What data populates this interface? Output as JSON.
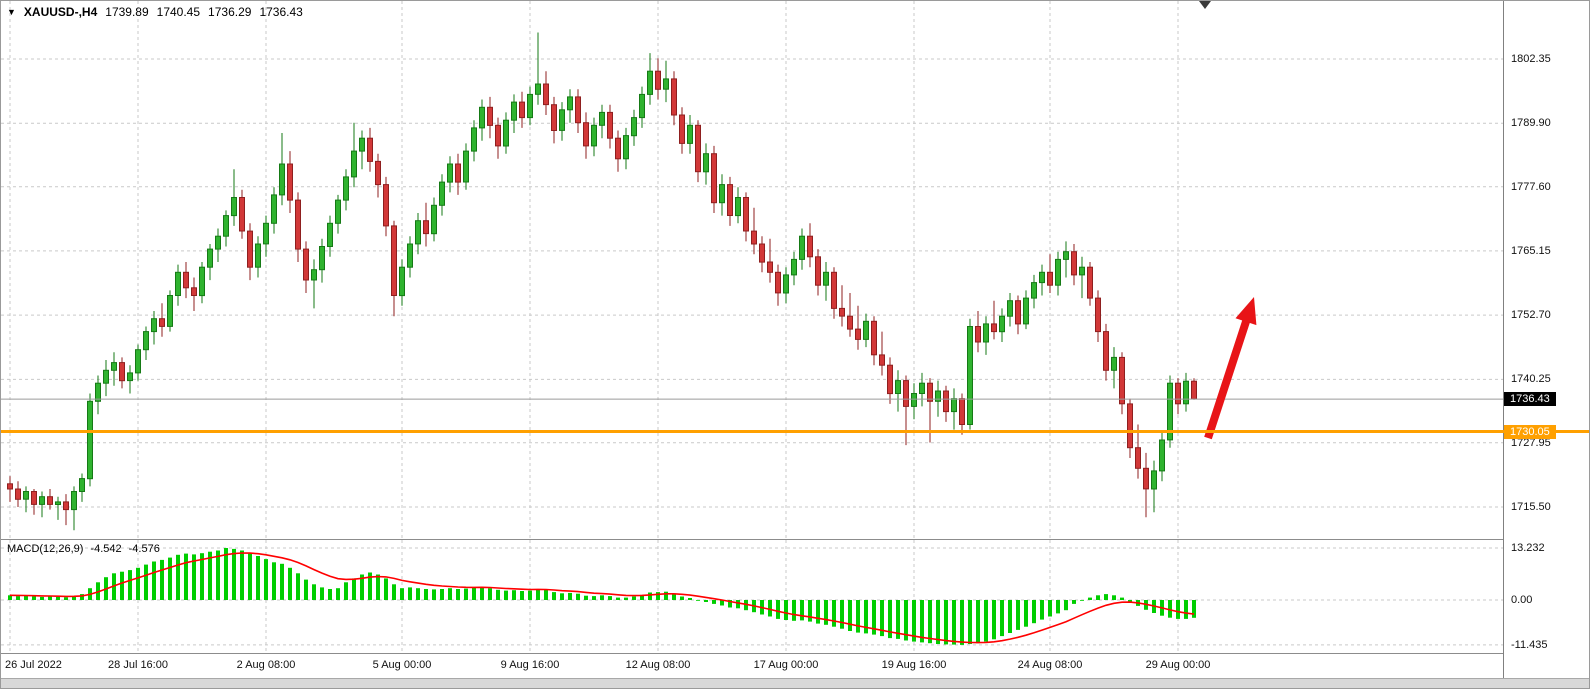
{
  "window": {
    "symbol": "XAUUSD-,H4",
    "ohlc": {
      "open": "1739.89",
      "high": "1740.45",
      "low": "1736.29",
      "close": "1736.43"
    }
  },
  "price_scale": {
    "labels": [
      "1802.35",
      "1789.90",
      "1777.60",
      "1765.15",
      "1752.70",
      "1740.25",
      "1727.95",
      "1715.50"
    ],
    "current_badge": "1736.43",
    "hline_badge": "1730.05"
  },
  "macd_scale": {
    "labels": [
      "13.232",
      "0.00",
      "-11.435"
    ]
  },
  "time_axis": {
    "labels": [
      {
        "text": "26 Jul 2022",
        "index": 0
      },
      {
        "text": "28 Jul 16:00",
        "index": 16
      },
      {
        "text": "2 Aug 08:00",
        "index": 32
      },
      {
        "text": "5 Aug 00:00",
        "index": 49
      },
      {
        "text": "9 Aug 16:00",
        "index": 65
      },
      {
        "text": "12 Aug 08:00",
        "index": 81
      },
      {
        "text": "17 Aug 00:00",
        "index": 97
      },
      {
        "text": "19 Aug 16:00",
        "index": 113
      },
      {
        "text": "24 Aug 08:00",
        "index": 130
      },
      {
        "text": "29 Aug 00:00",
        "index": 146
      }
    ]
  },
  "indicator": {
    "name": "MACD(12,26,9)",
    "value_main": "-4.542",
    "value_signal": "-4.576"
  },
  "colors": {
    "up": "#2fb32f",
    "up_border": "#157a15",
    "down": "#d23838",
    "down_border": "#8f1f1f",
    "grid": "#c9c9c9",
    "macd_bar": "#00ce00",
    "signal": "#ff0000",
    "hline": "#ffa000",
    "arrow": "#e81417",
    "current_line": "#9a9a9a",
    "badge_current_bg": "#000000"
  },
  "chart_data": {
    "type": "candlestick+macd",
    "symbol": "XAUUSD",
    "timeframe": "H4",
    "price_range": {
      "top": 1813.6,
      "bottom": 1709.3
    },
    "grid_prices": [
      1802.35,
      1789.9,
      1777.6,
      1765.15,
      1752.7,
      1740.25,
      1727.95,
      1715.5
    ],
    "current_price": 1736.43,
    "hline_price": 1730.05,
    "candles": [
      [
        1720,
        1721.5,
        1716.5,
        1719
      ],
      [
        1719,
        1720.5,
        1715.5,
        1717
      ],
      [
        1717,
        1719.5,
        1714.5,
        1718.5
      ],
      [
        1718.5,
        1719,
        1714,
        1716
      ],
      [
        1716,
        1718.5,
        1713.5,
        1717.5
      ],
      [
        1717.5,
        1719,
        1715,
        1716
      ],
      [
        1716,
        1717.5,
        1713,
        1716.5
      ],
      [
        1716.5,
        1718,
        1712,
        1715
      ],
      [
        1715,
        1719.5,
        1711,
        1718.5
      ],
      [
        1718.5,
        1722,
        1716.5,
        1721
      ],
      [
        1721,
        1737.5,
        1719.5,
        1736
      ],
      [
        1736,
        1741,
        1733.5,
        1739.5
      ],
      [
        1739.5,
        1744,
        1737,
        1742
      ],
      [
        1742,
        1745.5,
        1739,
        1743.5
      ],
      [
        1743.5,
        1744.5,
        1738.5,
        1740
      ],
      [
        1740,
        1743,
        1737.5,
        1741.5
      ],
      [
        1741.5,
        1747,
        1740,
        1746
      ],
      [
        1746,
        1750.5,
        1744,
        1749.5
      ],
      [
        1749.5,
        1753.5,
        1747,
        1752
      ],
      [
        1752,
        1755,
        1748.5,
        1750.5
      ],
      [
        1750.5,
        1757.5,
        1749.5,
        1756.5
      ],
      [
        1756.5,
        1762.5,
        1754.5,
        1761
      ],
      [
        1761,
        1763,
        1756,
        1758
      ],
      [
        1758,
        1760,
        1753.5,
        1756.5
      ],
      [
        1756.5,
        1763,
        1755,
        1762
      ],
      [
        1762,
        1766.5,
        1759.5,
        1765.5
      ],
      [
        1765.5,
        1769.5,
        1763,
        1768
      ],
      [
        1768,
        1773,
        1766,
        1772
      ],
      [
        1772,
        1781,
        1770,
        1775.5
      ],
      [
        1775.5,
        1777,
        1767.5,
        1769
      ],
      [
        1769,
        1770.5,
        1759.5,
        1762
      ],
      [
        1762,
        1768,
        1760,
        1766.5
      ],
      [
        1766.5,
        1772,
        1764,
        1770.5
      ],
      [
        1770.5,
        1777.5,
        1768.5,
        1776
      ],
      [
        1776,
        1788,
        1774,
        1782
      ],
      [
        1782,
        1784.5,
        1772.5,
        1775
      ],
      [
        1775,
        1776.5,
        1763,
        1765.5
      ],
      [
        1765.5,
        1767,
        1757,
        1759.5
      ],
      [
        1759.5,
        1763.5,
        1754,
        1761.5
      ],
      [
        1761.5,
        1767.5,
        1759,
        1766
      ],
      [
        1766,
        1772,
        1764,
        1770.5
      ],
      [
        1770.5,
        1776,
        1768.5,
        1775
      ],
      [
        1775,
        1781,
        1773,
        1779.5
      ],
      [
        1779.5,
        1790,
        1777.5,
        1784.5
      ],
      [
        1784.5,
        1788.5,
        1781,
        1787
      ],
      [
        1787,
        1789,
        1780.5,
        1782.5
      ],
      [
        1782.5,
        1784,
        1775.5,
        1778
      ],
      [
        1778,
        1779.5,
        1768,
        1770
      ],
      [
        1770,
        1771,
        1752.5,
        1756.5
      ],
      [
        1756.5,
        1763.5,
        1754.5,
        1762
      ],
      [
        1762,
        1768,
        1760,
        1766.5
      ],
      [
        1766.5,
        1772.5,
        1764.5,
        1771
      ],
      [
        1771,
        1774.5,
        1766,
        1768.5
      ],
      [
        1768.5,
        1775.5,
        1767,
        1774
      ],
      [
        1774,
        1780,
        1772,
        1778.5
      ],
      [
        1778.5,
        1783.5,
        1776.5,
        1782
      ],
      [
        1782,
        1784,
        1776,
        1778.5
      ],
      [
        1778.5,
        1786,
        1777,
        1784.5
      ],
      [
        1784.5,
        1790.5,
        1782.5,
        1789
      ],
      [
        1789,
        1794.5,
        1786.5,
        1793
      ],
      [
        1793,
        1795,
        1787,
        1789.5
      ],
      [
        1789.5,
        1791,
        1783,
        1785.5
      ],
      [
        1785.5,
        1792,
        1784,
        1790.5
      ],
      [
        1790.5,
        1795.5,
        1788,
        1794
      ],
      [
        1794,
        1796,
        1789,
        1791
      ],
      [
        1791,
        1797,
        1789.5,
        1795.5
      ],
      [
        1795.5,
        1807.5,
        1793.5,
        1797.5
      ],
      [
        1797.5,
        1800,
        1791.5,
        1793.5
      ],
      [
        1793.5,
        1795,
        1786,
        1788.5
      ],
      [
        1788.5,
        1794,
        1786.5,
        1792.5
      ],
      [
        1792.5,
        1796.5,
        1790,
        1795
      ],
      [
        1795,
        1796.5,
        1788,
        1790
      ],
      [
        1790,
        1792,
        1783,
        1785.5
      ],
      [
        1785.5,
        1791,
        1783.5,
        1789.5
      ],
      [
        1789.5,
        1793.5,
        1787,
        1792
      ],
      [
        1792,
        1793.5,
        1785,
        1787
      ],
      [
        1787,
        1788.5,
        1780.5,
        1783
      ],
      [
        1783,
        1789,
        1781,
        1787.5
      ],
      [
        1787.5,
        1792.5,
        1785.5,
        1791
      ],
      [
        1791,
        1797,
        1789,
        1795.5
      ],
      [
        1795.5,
        1803.5,
        1793.5,
        1800
      ],
      [
        1800,
        1802.5,
        1794.5,
        1796.5
      ],
      [
        1796.5,
        1802,
        1794,
        1798.5
      ],
      [
        1798.5,
        1800,
        1789.5,
        1791.5
      ],
      [
        1791.5,
        1793,
        1784,
        1786
      ],
      [
        1786,
        1791.5,
        1784,
        1789.5
      ],
      [
        1789.5,
        1790.5,
        1778.5,
        1780.5
      ],
      [
        1780.5,
        1786,
        1778,
        1784
      ],
      [
        1784,
        1785.5,
        1772.5,
        1774.5
      ],
      [
        1774.5,
        1780,
        1772,
        1778
      ],
      [
        1778,
        1779.5,
        1770,
        1772
      ],
      [
        1772,
        1777.5,
        1770.5,
        1775.5
      ],
      [
        1775.5,
        1776.5,
        1767,
        1769
      ],
      [
        1769,
        1773.5,
        1764.5,
        1766.5
      ],
      [
        1766.5,
        1768,
        1761,
        1763
      ],
      [
        1763,
        1767.5,
        1759,
        1761
      ],
      [
        1761,
        1762.5,
        1754.5,
        1757
      ],
      [
        1757,
        1762,
        1755,
        1760.5
      ],
      [
        1760.5,
        1765,
        1758.5,
        1763.5
      ],
      [
        1763.5,
        1769.5,
        1761.5,
        1768
      ],
      [
        1768,
        1770.5,
        1762,
        1764
      ],
      [
        1764,
        1765.5,
        1756.5,
        1758.5
      ],
      [
        1758.5,
        1763,
        1755.5,
        1761
      ],
      [
        1761,
        1762,
        1752,
        1754
      ],
      [
        1754,
        1758.5,
        1750.5,
        1752.5
      ],
      [
        1752.5,
        1757,
        1748.5,
        1750
      ],
      [
        1750,
        1754.5,
        1746,
        1748
      ],
      [
        1748,
        1753,
        1746.5,
        1751.5
      ],
      [
        1751.5,
        1752.5,
        1743,
        1745
      ],
      [
        1745,
        1749.5,
        1741,
        1743
      ],
      [
        1743,
        1744.5,
        1735.5,
        1737.5
      ],
      [
        1737.5,
        1742,
        1734,
        1740
      ],
      [
        1740,
        1741,
        1727.5,
        1735
      ],
      [
        1735,
        1739.5,
        1732.5,
        1737.5
      ],
      [
        1737.5,
        1741.5,
        1735,
        1739.5
      ],
      [
        1739.5,
        1740.5,
        1728,
        1736
      ],
      [
        1736,
        1740,
        1733,
        1738
      ],
      [
        1738,
        1739,
        1732,
        1734
      ],
      [
        1734,
        1738.5,
        1730.5,
        1736.5
      ],
      [
        1736.5,
        1737.5,
        1729.5,
        1731.5
      ],
      [
        1731.5,
        1752,
        1730.5,
        1750.5
      ],
      [
        1750.5,
        1753.5,
        1745.5,
        1747.5
      ],
      [
        1747.5,
        1752.5,
        1745,
        1751
      ],
      [
        1751,
        1755.5,
        1748,
        1749.5
      ],
      [
        1749.5,
        1754,
        1747.5,
        1752.5
      ],
      [
        1752.5,
        1757,
        1750.5,
        1755.5
      ],
      [
        1755.5,
        1756.5,
        1749,
        1751
      ],
      [
        1751,
        1757.5,
        1750,
        1756
      ],
      [
        1756,
        1760.5,
        1754,
        1759
      ],
      [
        1759,
        1762.5,
        1756.5,
        1761
      ],
      [
        1761,
        1764.5,
        1757,
        1758.5
      ],
      [
        1758.5,
        1765,
        1756.5,
        1763.5
      ],
      [
        1763.5,
        1767,
        1760,
        1765
      ],
      [
        1765,
        1766.5,
        1758.5,
        1760.5
      ],
      [
        1760.5,
        1764,
        1756,
        1762
      ],
      [
        1762,
        1763,
        1754.5,
        1756
      ],
      [
        1756,
        1757.5,
        1747.5,
        1749.5
      ],
      [
        1749.5,
        1751,
        1740,
        1742
      ],
      [
        1742,
        1746.5,
        1738.5,
        1744.5
      ],
      [
        1744.5,
        1745.5,
        1733.5,
        1735.5
      ],
      [
        1735.5,
        1736.5,
        1725,
        1727
      ],
      [
        1727,
        1731.5,
        1721,
        1723
      ],
      [
        1723,
        1726,
        1713.5,
        1719
      ],
      [
        1719,
        1724.5,
        1714.5,
        1722.5
      ],
      [
        1722.5,
        1730,
        1720.5,
        1728.5
      ],
      [
        1728.5,
        1741,
        1727,
        1739.5
      ],
      [
        1739.5,
        1740.5,
        1733.5,
        1735.5
      ],
      [
        1735.5,
        1741.5,
        1734,
        1739.89
      ],
      [
        1739.89,
        1740.45,
        1736.29,
        1736.43
      ]
    ],
    "macd": {
      "range": {
        "top": 15.27,
        "bottom": -13.49
      },
      "grid_values": [
        13.232,
        0,
        -11.435
      ],
      "signal_ema_period": 9,
      "values": [
        1.2,
        1.0,
        1.1,
        0.9,
        0.8,
        0.9,
        0.8,
        0.7,
        1.0,
        1.5,
        3.0,
        4.5,
        5.8,
        6.8,
        7.2,
        7.6,
        8.2,
        9.0,
        9.8,
        10.2,
        10.8,
        11.5,
        11.8,
        11.6,
        11.9,
        12.3,
        12.6,
        13.232,
        13.0,
        12.6,
        11.8,
        11.2,
        10.4,
        9.6,
        9.2,
        8.2,
        6.8,
        5.2,
        4.0,
        3.2,
        2.8,
        3.0,
        4.5,
        5.5,
        6.5,
        7.0,
        6.5,
        5.5,
        4.0,
        3.0,
        3.2,
        3.0,
        2.8,
        2.7,
        2.8,
        3.0,
        2.8,
        2.9,
        3.1,
        3.3,
        3.0,
        2.6,
        2.4,
        2.5,
        2.3,
        2.4,
        2.8,
        2.6,
        2.0,
        1.7,
        1.8,
        1.6,
        1.1,
        1.0,
        1.2,
        1.0,
        0.6,
        0.6,
        0.9,
        1.3,
        1.9,
        2.0,
        2.1,
        1.6,
        0.9,
        0.5,
        -0.2,
        -0.5,
        -1.0,
        -1.4,
        -1.9,
        -2.1,
        -2.6,
        -3.1,
        -3.7,
        -4.2,
        -4.8,
        -5.1,
        -5.3,
        -5.2,
        -5.5,
        -6.0,
        -6.3,
        -6.8,
        -7.3,
        -7.9,
        -8.3,
        -8.5,
        -8.8,
        -9.2,
        -9.7,
        -9.9,
        -10.3,
        -10.6,
        -10.8,
        -11.0,
        -11.2,
        -11.3,
        -11.35,
        -11.435,
        -11.2,
        -11.0,
        -10.6,
        -10.0,
        -9.2,
        -8.4,
        -7.6,
        -6.8,
        -5.9,
        -5.0,
        -4.2,
        -3.4,
        -2.6,
        -1.0,
        -0.2,
        0.6,
        1.2,
        1.5,
        1.2,
        0.6,
        -0.5,
        -1.5,
        -2.5,
        -3.3,
        -4.0,
        -4.5,
        -4.8,
        -4.8,
        -4.542
      ]
    },
    "annotations": [
      {
        "type": "arrow",
        "from": [
          1207,
          437
        ],
        "to": [
          1253,
          296
        ]
      }
    ]
  }
}
